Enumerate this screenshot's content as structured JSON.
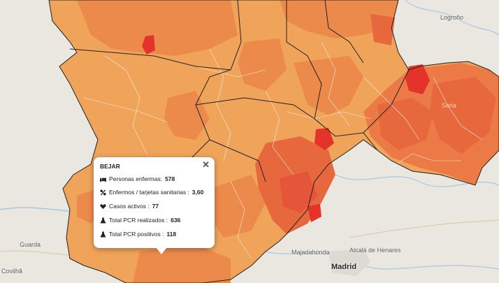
{
  "map": {
    "places": {
      "logrono": "Logroño",
      "soria": "Soria",
      "guarda": "Guarda",
      "covilha": "Covilhã",
      "majadahonda": "Majadahonda",
      "alcala": "Alcalá de Henares",
      "madrid": "Madrid"
    },
    "colors": {
      "light": "#f0a45a",
      "medium": "#ec8a4c",
      "dark": "#e8683e",
      "red": "#e3332a",
      "terrain": "#e8e6df",
      "river": "#a7c7e7"
    }
  },
  "popup": {
    "title": "BEJAR",
    "close": "✕",
    "rows": [
      {
        "icon": "bed-icon",
        "label": "Personas enfermas:",
        "value": "578"
      },
      {
        "icon": "percent-icon",
        "label": "Enfermos / tarjetas sanitarias :",
        "value": "3,60"
      },
      {
        "icon": "virus-icon",
        "label": "Casos activos :",
        "value": "77"
      },
      {
        "icon": "flask-icon",
        "label": "Total PCR realizados :",
        "value": "636"
      },
      {
        "icon": "flask-icon",
        "label": "Total PCR positivos :",
        "value": "118"
      }
    ]
  }
}
